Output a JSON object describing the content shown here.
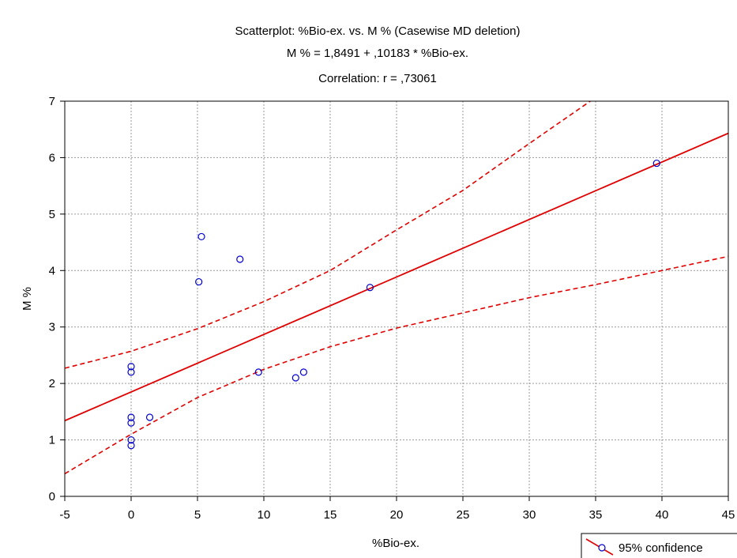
{
  "chart_data": {
    "type": "scatter",
    "title_lines": [
      "Scatterplot: %Bio-ex. vs. M % (Casewise MD deletion)",
      "M % = 1,8491 + ,10183 * %Bio-ex.",
      "Correlation: r = ,73061"
    ],
    "xlabel": "%Bio-ex.",
    "ylabel": "M %",
    "xlim": [
      -5,
      45
    ],
    "ylim": [
      0,
      7
    ],
    "xticks": [
      -5,
      0,
      5,
      10,
      15,
      20,
      25,
      30,
      35,
      40,
      45
    ],
    "yticks": [
      0,
      1,
      2,
      3,
      4,
      5,
      6,
      7
    ],
    "grid": true,
    "points": [
      {
        "x": 0,
        "y": 2.3
      },
      {
        "x": 0,
        "y": 2.2
      },
      {
        "x": 0,
        "y": 1.4
      },
      {
        "x": 0,
        "y": 1.3
      },
      {
        "x": 0,
        "y": 1.0
      },
      {
        "x": 0,
        "y": 0.9
      },
      {
        "x": 1.4,
        "y": 1.4
      },
      {
        "x": 5.1,
        "y": 3.8
      },
      {
        "x": 5.3,
        "y": 4.6
      },
      {
        "x": 8.2,
        "y": 4.2
      },
      {
        "x": 9.6,
        "y": 2.2
      },
      {
        "x": 12.4,
        "y": 2.1
      },
      {
        "x": 13.0,
        "y": 2.2
      },
      {
        "x": 18.0,
        "y": 3.7
      },
      {
        "x": 39.6,
        "y": 5.9
      }
    ],
    "regression": {
      "intercept": 1.8491,
      "slope": 0.10183
    },
    "confidence_upper": [
      {
        "x": -5,
        "y": 2.27
      },
      {
        "x": 0,
        "y": 2.57
      },
      {
        "x": 5,
        "y": 2.97
      },
      {
        "x": 10,
        "y": 3.45
      },
      {
        "x": 15,
        "y": 4.0
      },
      {
        "x": 20,
        "y": 4.72
      },
      {
        "x": 25,
        "y": 5.42
      },
      {
        "x": 30,
        "y": 6.25
      },
      {
        "x": 34.6,
        "y": 7.0
      }
    ],
    "confidence_lower": [
      {
        "x": -5,
        "y": 0.4
      },
      {
        "x": 0,
        "y": 1.1
      },
      {
        "x": 5,
        "y": 1.75
      },
      {
        "x": 10,
        "y": 2.25
      },
      {
        "x": 15,
        "y": 2.65
      },
      {
        "x": 20,
        "y": 2.98
      },
      {
        "x": 25,
        "y": 3.25
      },
      {
        "x": 30,
        "y": 3.52
      },
      {
        "x": 35,
        "y": 3.75
      },
      {
        "x": 40,
        "y": 4.0
      },
      {
        "x": 45,
        "y": 4.25
      }
    ],
    "legend": {
      "label": "95% confidence",
      "position": "bottom-right"
    },
    "colors": {
      "points": "#0000cc",
      "regression": "#e00000",
      "confidence": "#e00000",
      "grid": "#9a9a9a",
      "axis": "#000000"
    }
  }
}
